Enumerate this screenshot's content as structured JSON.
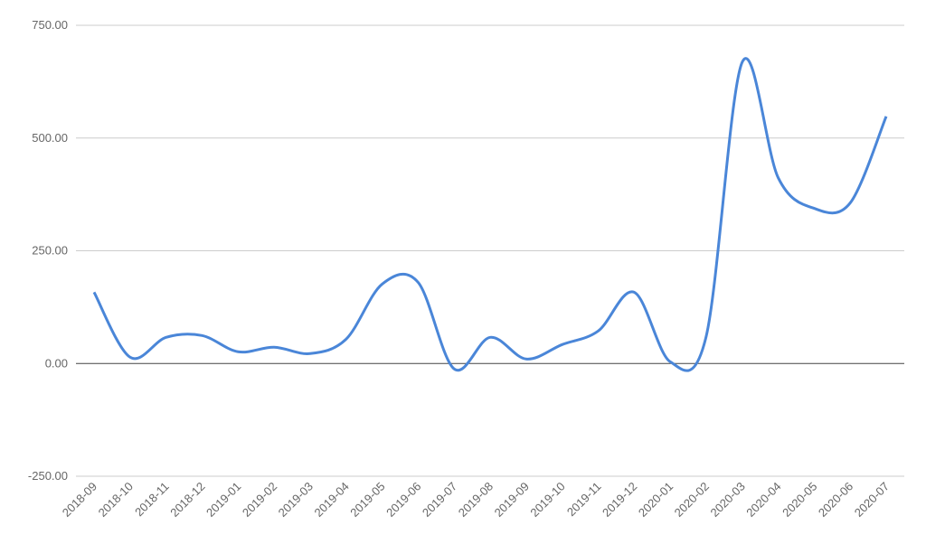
{
  "chart_data": {
    "type": "line",
    "categories": [
      "2018-09",
      "2018-10",
      "2018-11",
      "2018-12",
      "2019-01",
      "2019-02",
      "2019-03",
      "2019-04",
      "2019-05",
      "2019-06",
      "2019-07",
      "2019-08",
      "2019-09",
      "2019-10",
      "2019-11",
      "2019-12",
      "2020-01",
      "2020-02",
      "2020-03",
      "2020-04",
      "2020-05",
      "2020-06",
      "2020-07"
    ],
    "values": [
      158,
      14,
      58,
      62,
      26,
      36,
      22,
      54,
      176,
      180,
      -12,
      58,
      10,
      42,
      72,
      158,
      4,
      60,
      668,
      412,
      344,
      356,
      548
    ],
    "color": "#4a86d8",
    "smooth": true,
    "ylim": [
      -250,
      750
    ],
    "yticks": [
      {
        "value": -250,
        "label": "-250.00"
      },
      {
        "value": 0,
        "label": "0.00"
      },
      {
        "value": 250,
        "label": "250.00"
      },
      {
        "value": 500,
        "label": "500.00"
      },
      {
        "value": 750,
        "label": "750.00"
      }
    ],
    "grid": true
  }
}
